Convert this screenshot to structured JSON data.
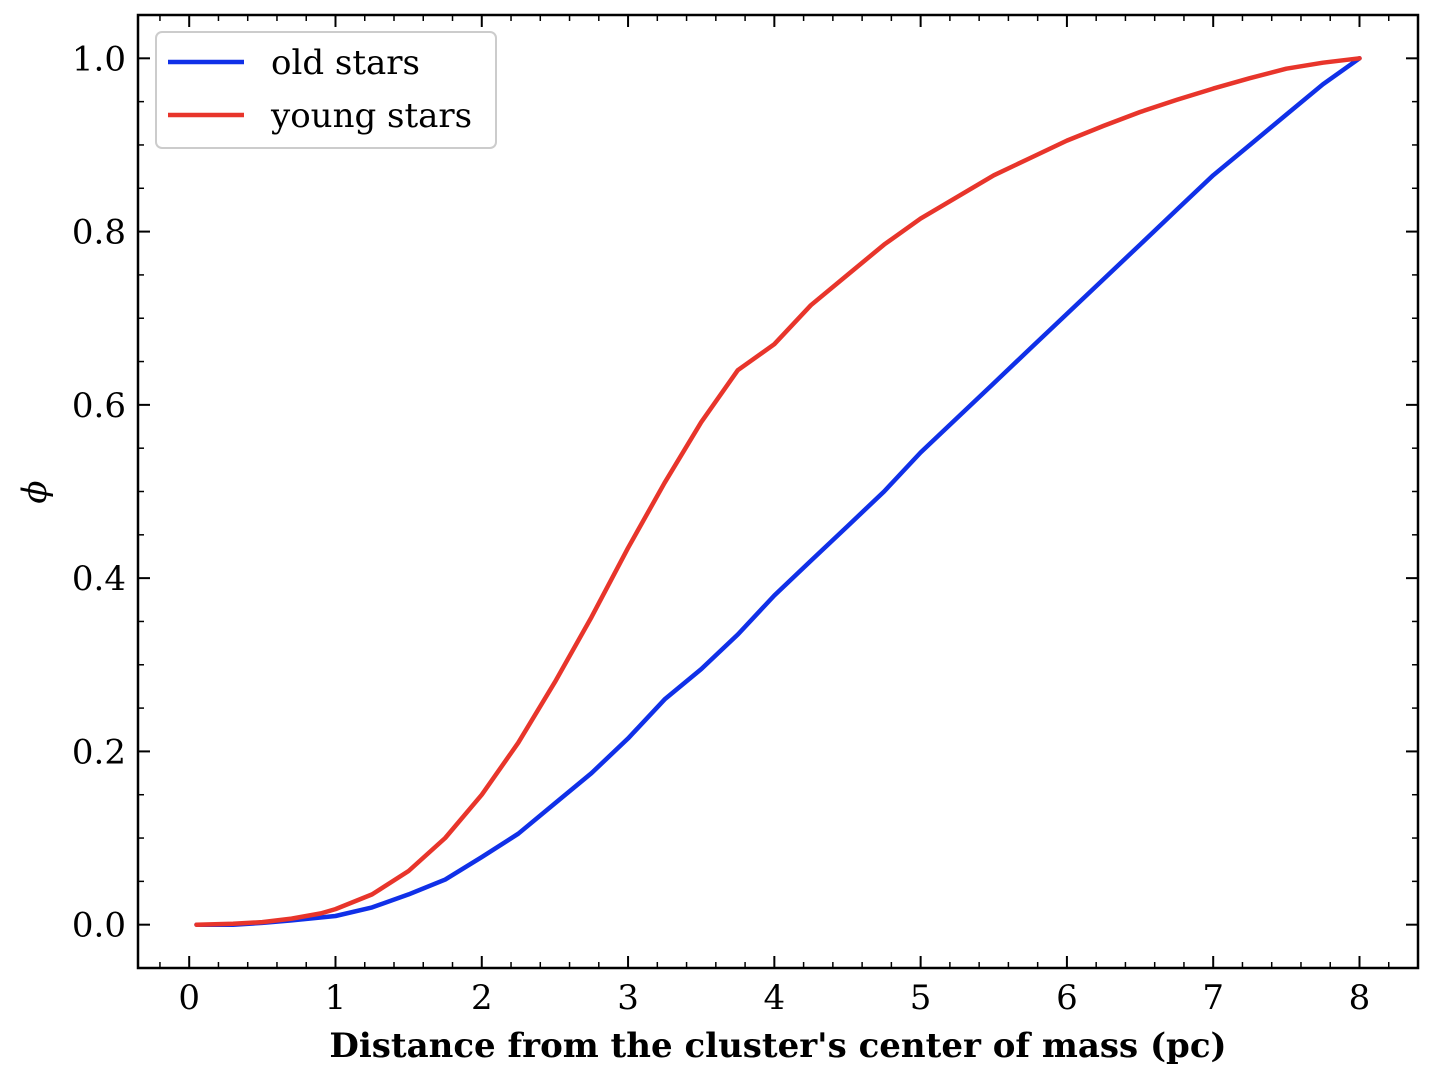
{
  "chart_data": {
    "type": "line",
    "title": "",
    "xlabel": "Distance from the cluster's center of mass (pc)",
    "ylabel": "ϕ",
    "xlim": [
      -0.35,
      8.4
    ],
    "ylim": [
      -0.05,
      1.05
    ],
    "xticks": [
      0,
      1,
      2,
      3,
      4,
      5,
      6,
      7,
      8
    ],
    "xtick_labels": [
      "0",
      "1",
      "2",
      "3",
      "4",
      "5",
      "6",
      "7",
      "8"
    ],
    "yticks": [
      0.0,
      0.2,
      0.4,
      0.6,
      0.8,
      1.0
    ],
    "ytick_labels": [
      "0.0",
      "0.2",
      "0.4",
      "0.6",
      "0.8",
      "1.0"
    ],
    "grid": false,
    "legend_position": "top-left",
    "series": [
      {
        "name": "old stars",
        "color": "#1030e8",
        "x": [
          0.05,
          0.3,
          0.5,
          0.7,
          1.0,
          1.25,
          1.5,
          1.75,
          2.0,
          2.25,
          2.5,
          2.75,
          3.0,
          3.25,
          3.5,
          3.75,
          4.0,
          4.25,
          4.5,
          4.75,
          5.0,
          5.25,
          5.5,
          5.75,
          6.0,
          6.25,
          6.5,
          6.75,
          7.0,
          7.25,
          7.5,
          7.75,
          8.0
        ],
        "y": [
          0.0,
          0.0,
          0.002,
          0.005,
          0.01,
          0.02,
          0.035,
          0.052,
          0.078,
          0.105,
          0.14,
          0.175,
          0.215,
          0.26,
          0.295,
          0.335,
          0.38,
          0.42,
          0.46,
          0.5,
          0.545,
          0.585,
          0.625,
          0.665,
          0.705,
          0.745,
          0.785,
          0.825,
          0.865,
          0.9,
          0.935,
          0.97,
          1.0
        ]
      },
      {
        "name": "young stars",
        "color": "#e8352b",
        "x": [
          0.05,
          0.3,
          0.5,
          0.7,
          0.9,
          1.0,
          1.25,
          1.5,
          1.75,
          2.0,
          2.25,
          2.5,
          2.75,
          3.0,
          3.25,
          3.5,
          3.75,
          4.0,
          4.25,
          4.5,
          4.75,
          5.0,
          5.25,
          5.5,
          5.75,
          6.0,
          6.25,
          6.5,
          6.75,
          7.0,
          7.25,
          7.5,
          7.75,
          8.0
        ],
        "y": [
          0.0,
          0.001,
          0.003,
          0.007,
          0.013,
          0.018,
          0.035,
          0.062,
          0.1,
          0.15,
          0.21,
          0.28,
          0.355,
          0.435,
          0.51,
          0.58,
          0.64,
          0.67,
          0.715,
          0.75,
          0.785,
          0.815,
          0.84,
          0.865,
          0.885,
          0.905,
          0.922,
          0.938,
          0.952,
          0.965,
          0.977,
          0.988,
          0.995,
          1.0
        ]
      }
    ]
  }
}
